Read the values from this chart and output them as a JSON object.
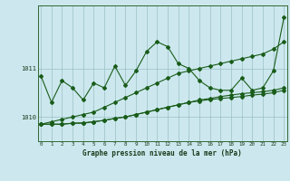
{
  "background_color": "#cce8ee",
  "line_color": "#1a5c1a",
  "grid_color": "#9bbfc4",
  "title": "Graphe pression niveau de la mer (hPa)",
  "x_hours": [
    0,
    1,
    2,
    3,
    4,
    5,
    6,
    7,
    8,
    9,
    10,
    11,
    12,
    13,
    14,
    15,
    16,
    17,
    18,
    19,
    20,
    21,
    22,
    23
  ],
  "line_diag": [
    1009.85,
    1009.9,
    1009.95,
    1010.0,
    1010.05,
    1010.1,
    1010.2,
    1010.3,
    1010.4,
    1010.5,
    1010.6,
    1010.7,
    1010.8,
    1010.9,
    1010.95,
    1011.0,
    1011.05,
    1011.1,
    1011.15,
    1011.2,
    1011.25,
    1011.3,
    1011.4,
    1011.55
  ],
  "line_flat1": [
    1009.85,
    1009.85,
    1009.85,
    1009.87,
    1009.87,
    1009.9,
    1009.93,
    1009.97,
    1010.0,
    1010.05,
    1010.1,
    1010.15,
    1010.2,
    1010.25,
    1010.3,
    1010.35,
    1010.38,
    1010.42,
    1010.45,
    1010.48,
    1010.5,
    1010.52,
    1010.55,
    1010.6
  ],
  "line_flat2": [
    1009.85,
    1009.85,
    1009.85,
    1009.87,
    1009.88,
    1009.9,
    1009.93,
    1009.97,
    1010.0,
    1010.05,
    1010.1,
    1010.15,
    1010.2,
    1010.25,
    1010.3,
    1010.33,
    1010.36,
    1010.38,
    1010.4,
    1010.42,
    1010.45,
    1010.47,
    1010.5,
    1010.55
  ],
  "line_main": [
    1010.85,
    1010.3,
    1010.75,
    1010.6,
    1010.35,
    1010.7,
    1010.6,
    1011.05,
    1010.65,
    1010.95,
    1011.35,
    1011.55,
    1011.45,
    1011.1,
    1011.0,
    1010.75,
    1010.6,
    1010.55,
    1010.55,
    1010.8,
    1010.55,
    1010.6,
    1010.95,
    1012.05
  ],
  "ylim": [
    1009.5,
    1012.3
  ],
  "yticks": [
    1010,
    1011
  ],
  "fig_width": 3.2,
  "fig_height": 2.0,
  "dpi": 100
}
